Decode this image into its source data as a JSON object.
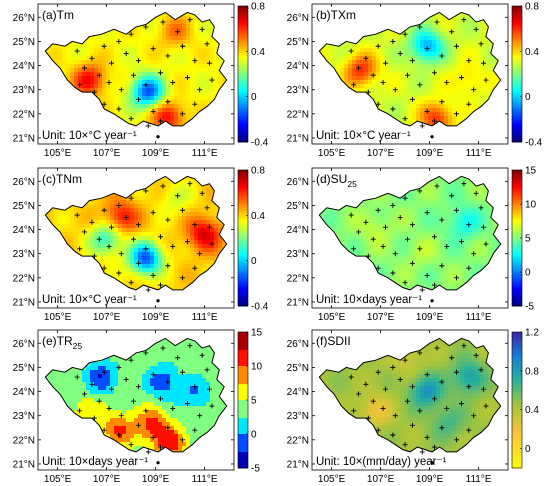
{
  "figure": {
    "x_ticks": [
      "105°E",
      "107°E",
      "109°E",
      "111°E"
    ],
    "y_ticks": [
      "21°N",
      "22°N",
      "23°N",
      "24°N",
      "25°N",
      "26°N"
    ]
  },
  "panels": [
    {
      "id": "a",
      "label": "(a)Tm",
      "unit": "Unit: 10×°C year⁻¹",
      "cbar_ticks": [
        "0.8",
        "0.4",
        "0",
        "-0.4"
      ],
      "cbar_range": [
        -0.4,
        0.8
      ],
      "colormap": "jet",
      "field_base": 0.35,
      "field_blobs": [
        [
          108.7,
          22.9,
          -0.5
        ],
        [
          106.3,
          23.4,
          0.3
        ],
        [
          109.8,
          25.4,
          0.15
        ],
        [
          109.5,
          21.9,
          0.3
        ]
      ]
    },
    {
      "id": "b",
      "label": "(b)TXm",
      "unit": "Unit: 10×°C year⁻¹",
      "cbar_ticks": [
        "0.8",
        "0.4",
        "0",
        "-0.4"
      ],
      "cbar_range": [
        -0.4,
        0.8
      ],
      "colormap": "jet",
      "field_base": 0.3,
      "field_blobs": [
        [
          108.9,
          24.8,
          -0.35
        ],
        [
          106.2,
          23.8,
          0.3
        ],
        [
          109.3,
          21.8,
          0.3
        ],
        [
          110.6,
          23.4,
          0.1
        ]
      ]
    },
    {
      "id": "c",
      "label": "(c)TNm",
      "unit": "Unit: 10×°C year⁻¹",
      "cbar_ticks": [
        "0.8",
        "0.4",
        "0",
        "-0.4"
      ],
      "cbar_range": [
        -0.4,
        0.8
      ],
      "colormap": "jet",
      "field_base": 0.4,
      "field_blobs": [
        [
          108.6,
          22.8,
          -0.55
        ],
        [
          107.0,
          23.6,
          -0.3
        ],
        [
          107.6,
          24.5,
          0.25
        ],
        [
          111.0,
          23.8,
          0.3
        ],
        [
          109.8,
          25.3,
          -0.1
        ]
      ]
    },
    {
      "id": "d",
      "label": "(d)SU25",
      "label_main": "(d)SU",
      "label_sub": "25",
      "unit": "Unit: 10×days year⁻¹",
      "cbar_ticks": [
        "15",
        "10",
        "5",
        "0",
        "-5"
      ],
      "cbar_range": [
        -5,
        15
      ],
      "colormap": "jet",
      "field_base": 5.2,
      "field_blobs": [
        [
          110.4,
          24.3,
          -2.5
        ],
        [
          106.8,
          24.1,
          1.2
        ],
        [
          108.6,
          23.0,
          0.8
        ]
      ]
    },
    {
      "id": "e",
      "label": "(e)TR25",
      "label_main": "(e)TR",
      "label_sub": "25",
      "unit": "Unit: 10×days year⁻¹",
      "cbar_ticks": [
        "15",
        "10",
        "5",
        "0",
        "-5"
      ],
      "cbar_range": [
        -5,
        15
      ],
      "colormap": "jet-discrete",
      "field_base": 4.0,
      "field_blobs": [
        [
          106.8,
          24.6,
          -6
        ],
        [
          109.3,
          24.4,
          -6
        ],
        [
          110.6,
          23.9,
          -4
        ],
        [
          108.9,
          22.6,
          7
        ],
        [
          107.5,
          22.4,
          6
        ],
        [
          109.6,
          21.8,
          7
        ],
        [
          106.2,
          23.1,
          3
        ]
      ]
    },
    {
      "id": "f",
      "label": "(f)SDII",
      "unit": "Unit: 10×(mm/day) year⁻¹",
      "cbar_ticks": [
        "1.2",
        "0.8",
        "0.4",
        "0"
      ],
      "cbar_range": [
        -0.2,
        1.2
      ],
      "colormap": "parula",
      "field_base": 0.45,
      "field_blobs": [
        [
          108.9,
          24.0,
          0.4
        ],
        [
          110.6,
          24.6,
          0.35
        ],
        [
          106.8,
          23.2,
          -0.25
        ],
        [
          109.8,
          22.7,
          0.2
        ],
        [
          108.1,
          25.4,
          -0.15
        ]
      ]
    }
  ],
  "stations": [
    [
      105.8,
      24.6
    ],
    [
      106.4,
      24.3
    ],
    [
      106.9,
      24.8
    ],
    [
      107.5,
      25.0
    ],
    [
      108.0,
      25.3
    ],
    [
      108.6,
      25.6
    ],
    [
      109.3,
      25.8
    ],
    [
      109.9,
      25.4
    ],
    [
      110.4,
      25.9
    ],
    [
      110.9,
      25.5
    ],
    [
      111.1,
      24.9
    ],
    [
      106.1,
      23.9
    ],
    [
      106.7,
      23.6
    ],
    [
      107.2,
      24.1
    ],
    [
      107.8,
      24.5
    ],
    [
      108.3,
      24.2
    ],
    [
      108.9,
      24.7
    ],
    [
      109.5,
      24.4
    ],
    [
      110.1,
      24.8
    ],
    [
      110.6,
      24.2
    ],
    [
      111.2,
      24.1
    ],
    [
      105.9,
      23.2
    ],
    [
      106.5,
      22.9
    ],
    [
      107.1,
      23.3
    ],
    [
      107.6,
      23.0
    ],
    [
      108.1,
      23.6
    ],
    [
      108.6,
      23.2
    ],
    [
      109.2,
      23.7
    ],
    [
      109.7,
      23.3
    ],
    [
      110.3,
      23.5
    ],
    [
      110.8,
      23.0
    ],
    [
      111.3,
      23.4
    ],
    [
      106.9,
      22.4
    ],
    [
      107.5,
      22.2
    ],
    [
      108.3,
      22.6
    ],
    [
      108.9,
      22.1
    ],
    [
      109.5,
      22.5
    ],
    [
      110.1,
      22.0
    ],
    [
      110.6,
      22.4
    ],
    [
      108.0,
      21.8
    ],
    [
      109.2,
      21.7
    ],
    [
      108.7,
      21.5
    ]
  ]
}
